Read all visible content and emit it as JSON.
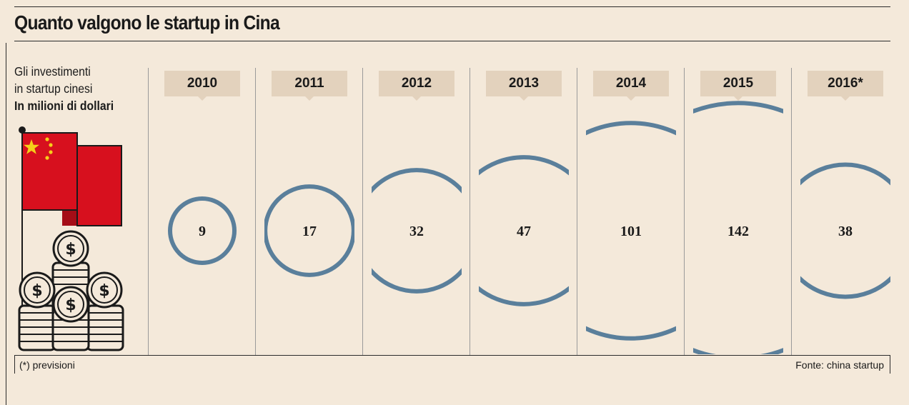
{
  "header": {
    "title": "Quanto valgono le startup in Cina"
  },
  "description": {
    "line1": "Gli investimenti",
    "line2": "in startup cinesi",
    "line3": "In milioni di dollari"
  },
  "footer": {
    "note": "(*) previsioni",
    "source": "Fonte: china startup"
  },
  "colors": {
    "background": "#f4e9da",
    "circle": "#5a7f9b",
    "tag": "#e3d2bd",
    "flag_red": "#d7101e",
    "flag_star": "#f5d019"
  },
  "icons": [
    "china-flag-icon",
    "dollar-coin-stack-icon"
  ],
  "chart_data": {
    "type": "bubble",
    "categories": [
      "2010",
      "2011",
      "2012",
      "2013",
      "2014",
      "2015",
      "2016*"
    ],
    "values": [
      9,
      17,
      32,
      47,
      101,
      142,
      38
    ],
    "value_labels": [
      "9",
      "17",
      "32",
      "47",
      "101",
      "142",
      "38"
    ],
    "unit": "In milioni di dollari"
  }
}
